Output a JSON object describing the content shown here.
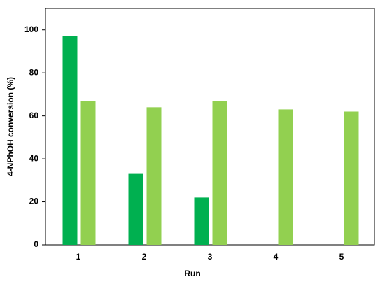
{
  "chart_data": {
    "type": "bar",
    "xlabel": "Run",
    "ylabel": "4-NPhOH conversion (%)",
    "categories": [
      "1",
      "2",
      "3",
      "4",
      "5"
    ],
    "series": [
      {
        "color": "#00b050",
        "values": [
          97,
          33,
          22,
          null,
          null
        ]
      },
      {
        "color": "#92d050",
        "values": [
          67,
          64,
          67,
          63,
          62
        ]
      }
    ],
    "ylim": [
      0,
      110
    ],
    "yticks": [
      0,
      20,
      40,
      60,
      80,
      100
    ],
    "grid": false
  }
}
